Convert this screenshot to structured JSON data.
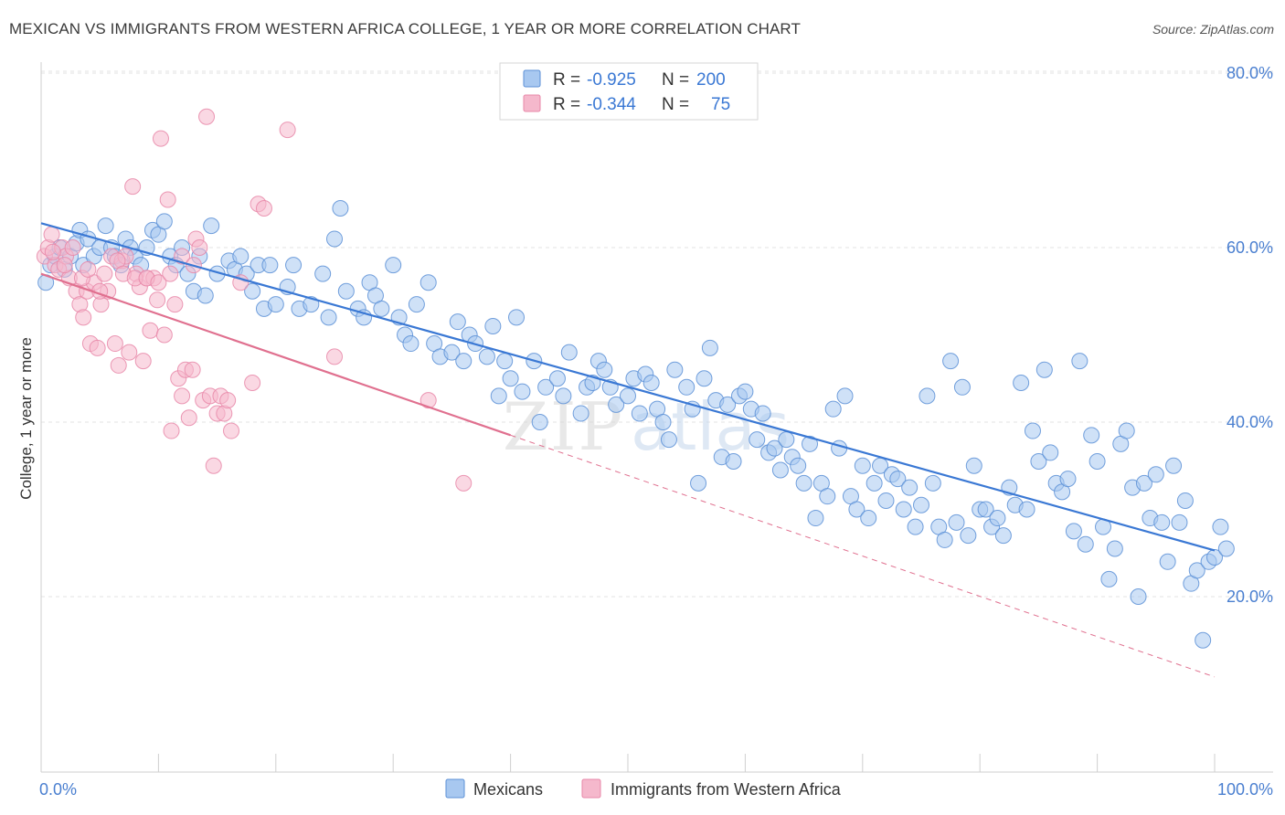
{
  "title": "MEXICAN VS IMMIGRANTS FROM WESTERN AFRICA COLLEGE, 1 YEAR OR MORE CORRELATION CHART",
  "source": "Source: ZipAtlas.com",
  "watermark": {
    "zip": "ZIP",
    "atlas": "atlas"
  },
  "colors": {
    "blue_fill": "#a8c8f0",
    "blue_stroke": "#5b8fd6",
    "blue_line": "#3a78d4",
    "pink_fill": "#f5b8cc",
    "pink_stroke": "#e887a8",
    "pink_line": "#e0708f",
    "grid": "#e3e3e3",
    "tick_text": "#4a7fd0"
  },
  "legend": {
    "rows": [
      {
        "r_label": "R =",
        "r_value": "-0.925",
        "n_label": "N =",
        "n_value": "200"
      },
      {
        "r_label": "R =",
        "r_value": "-0.344",
        "n_label": "N =",
        "n_value": "75"
      }
    ]
  },
  "chart_data": {
    "type": "scatter",
    "title": "MEXICAN VS IMMIGRANTS FROM WESTERN AFRICA COLLEGE, 1 YEAR OR MORE CORRELATION CHART",
    "xlabel": "",
    "ylabel": "College, 1 year or more",
    "xlim": [
      0,
      100
    ],
    "ylim": [
      0,
      85
    ],
    "x_tick_labels": [
      {
        "value": 0,
        "label": "0.0%"
      },
      {
        "value": 100,
        "label": "100.0%"
      }
    ],
    "y_tick_labels": [
      {
        "value": 20,
        "label": "20.0%"
      },
      {
        "value": 40,
        "label": "40.0%"
      },
      {
        "value": 60,
        "label": "60.0%"
      },
      {
        "value": 80,
        "label": "80.0%"
      }
    ],
    "grid": true,
    "legend_position": "bottom",
    "series": [
      {
        "name": "Mexicans",
        "color": "#a8c8f0",
        "trend": {
          "x0": 0,
          "y0": 62.8,
          "x1": 100,
          "y1": 25.3
        },
        "points": [
          [
            0.4,
            56
          ],
          [
            0.8,
            58
          ],
          [
            1.2,
            59
          ],
          [
            1.6,
            60
          ],
          [
            2.0,
            57.5
          ],
          [
            2.5,
            59
          ],
          [
            3,
            60.5
          ],
          [
            3.3,
            62
          ],
          [
            3.6,
            58
          ],
          [
            4,
            61
          ],
          [
            4.5,
            59
          ],
          [
            5,
            60
          ],
          [
            5.5,
            62.5
          ],
          [
            6,
            60
          ],
          [
            6.3,
            59
          ],
          [
            6.8,
            58
          ],
          [
            7.2,
            61
          ],
          [
            7.6,
            60
          ],
          [
            8,
            59
          ],
          [
            8.5,
            58
          ],
          [
            9,
            60
          ],
          [
            9.5,
            62
          ],
          [
            10,
            61.5
          ],
          [
            10.5,
            63
          ],
          [
            11,
            59
          ],
          [
            11.5,
            58
          ],
          [
            12,
            60
          ],
          [
            12.5,
            57
          ],
          [
            13,
            55
          ],
          [
            13.5,
            59
          ],
          [
            14,
            54.5
          ],
          [
            14.5,
            62.5
          ],
          [
            15,
            57
          ],
          [
            16,
            58.5
          ],
          [
            16.5,
            57.5
          ],
          [
            17,
            59
          ],
          [
            17.5,
            57
          ],
          [
            18,
            55
          ],
          [
            18.5,
            58
          ],
          [
            19,
            53
          ],
          [
            19.5,
            58
          ],
          [
            20,
            53.5
          ],
          [
            21,
            55.5
          ],
          [
            21.5,
            58
          ],
          [
            22,
            53
          ],
          [
            23,
            53.5
          ],
          [
            24,
            57
          ],
          [
            24.5,
            52
          ],
          [
            25,
            61
          ],
          [
            25.5,
            64.5
          ],
          [
            26,
            55
          ],
          [
            27,
            53
          ],
          [
            27.5,
            52
          ],
          [
            28,
            56
          ],
          [
            28.5,
            54.5
          ],
          [
            29,
            53
          ],
          [
            30,
            58
          ],
          [
            30.5,
            52
          ],
          [
            31,
            50
          ],
          [
            31.5,
            49
          ],
          [
            32,
            53.5
          ],
          [
            33,
            56
          ],
          [
            33.5,
            49
          ],
          [
            34,
            47.5
          ],
          [
            35,
            48
          ],
          [
            35.5,
            51.5
          ],
          [
            36,
            47
          ],
          [
            36.5,
            50
          ],
          [
            37,
            49
          ],
          [
            38,
            47.5
          ],
          [
            38.5,
            51
          ],
          [
            39,
            43
          ],
          [
            39.5,
            47
          ],
          [
            40,
            45
          ],
          [
            40.5,
            52
          ],
          [
            41,
            43.5
          ],
          [
            42,
            47
          ],
          [
            42.5,
            40
          ],
          [
            43,
            44
          ],
          [
            44,
            45
          ],
          [
            44.5,
            43
          ],
          [
            45,
            48
          ],
          [
            46,
            41
          ],
          [
            46.5,
            44
          ],
          [
            47,
            44.5
          ],
          [
            47.5,
            47
          ],
          [
            48,
            46
          ],
          [
            48.5,
            44
          ],
          [
            49,
            42
          ],
          [
            50,
            43
          ],
          [
            50.5,
            45
          ],
          [
            51,
            41
          ],
          [
            51.5,
            45.5
          ],
          [
            52,
            44.5
          ],
          [
            52.5,
            41.5
          ],
          [
            53,
            40
          ],
          [
            53.5,
            38
          ],
          [
            54,
            46
          ],
          [
            55,
            44
          ],
          [
            55.5,
            41.5
          ],
          [
            56,
            33
          ],
          [
            56.5,
            45
          ],
          [
            57,
            48.5
          ],
          [
            57.5,
            42.5
          ],
          [
            58,
            36
          ],
          [
            58.5,
            42
          ],
          [
            59,
            35.5
          ],
          [
            59.5,
            43
          ],
          [
            60,
            43.5
          ],
          [
            60.5,
            41.5
          ],
          [
            61,
            38
          ],
          [
            61.5,
            41
          ],
          [
            62,
            36.5
          ],
          [
            62.5,
            37
          ],
          [
            63,
            34.5
          ],
          [
            63.5,
            38
          ],
          [
            64,
            36
          ],
          [
            64.5,
            35
          ],
          [
            65,
            33
          ],
          [
            65.5,
            37.5
          ],
          [
            66,
            29
          ],
          [
            66.5,
            33
          ],
          [
            67,
            31.5
          ],
          [
            67.5,
            41.5
          ],
          [
            68,
            37
          ],
          [
            68.5,
            43
          ],
          [
            69,
            31.5
          ],
          [
            69.5,
            30
          ],
          [
            70,
            35
          ],
          [
            70.5,
            29
          ],
          [
            71,
            33
          ],
          [
            71.5,
            35
          ],
          [
            72,
            31
          ],
          [
            72.5,
            34
          ],
          [
            73,
            33.5
          ],
          [
            73.5,
            30
          ],
          [
            74,
            32.5
          ],
          [
            74.5,
            28
          ],
          [
            75,
            30.5
          ],
          [
            75.5,
            43
          ],
          [
            76,
            33
          ],
          [
            76.5,
            28
          ],
          [
            77,
            26.5
          ],
          [
            77.5,
            47
          ],
          [
            78,
            28.5
          ],
          [
            78.5,
            44
          ],
          [
            79,
            27
          ],
          [
            79.5,
            35
          ],
          [
            80,
            30
          ],
          [
            80.5,
            30
          ],
          [
            81,
            28
          ],
          [
            81.5,
            29
          ],
          [
            82,
            27
          ],
          [
            82.5,
            32.5
          ],
          [
            83,
            30.5
          ],
          [
            83.5,
            44.5
          ],
          [
            84,
            30
          ],
          [
            84.5,
            39
          ],
          [
            85,
            35.5
          ],
          [
            85.5,
            46
          ],
          [
            86,
            36.5
          ],
          [
            86.5,
            33
          ],
          [
            87,
            32
          ],
          [
            87.5,
            33.5
          ],
          [
            88,
            27.5
          ],
          [
            88.5,
            47
          ],
          [
            89,
            26
          ],
          [
            89.5,
            38.5
          ],
          [
            90,
            35.5
          ],
          [
            90.5,
            28
          ],
          [
            91,
            22
          ],
          [
            91.5,
            25.5
          ],
          [
            92,
            37.5
          ],
          [
            92.5,
            39
          ],
          [
            93,
            32.5
          ],
          [
            93.5,
            20
          ],
          [
            94,
            33
          ],
          [
            94.5,
            29
          ],
          [
            95,
            34
          ],
          [
            95.5,
            28.5
          ],
          [
            96,
            24
          ],
          [
            96.5,
            35
          ],
          [
            97,
            28.5
          ],
          [
            97.5,
            31
          ],
          [
            98,
            21.5
          ],
          [
            98.5,
            23
          ],
          [
            99,
            15
          ],
          [
            99.5,
            24
          ],
          [
            100,
            24.5
          ],
          [
            100.5,
            28
          ],
          [
            101,
            25.5
          ]
        ]
      },
      {
        "name": "Immigrants from Western Africa",
        "color": "#f5b8cc",
        "trend": {
          "x0": 0,
          "y0": 57,
          "x1": 40,
          "y1": 38.5,
          "dash_x1": 100,
          "dash_y1": 10.8
        },
        "points": [
          [
            0.3,
            59
          ],
          [
            0.6,
            60
          ],
          [
            0.9,
            61.5
          ],
          [
            1.2,
            58
          ],
          [
            1.5,
            57.5
          ],
          [
            1.8,
            60
          ],
          [
            2.1,
            59
          ],
          [
            2.4,
            56.5
          ],
          [
            2.7,
            60
          ],
          [
            3,
            55
          ],
          [
            3.3,
            53.5
          ],
          [
            3.6,
            52
          ],
          [
            3.9,
            55
          ],
          [
            4.2,
            49
          ],
          [
            4.5,
            56
          ],
          [
            4.8,
            48.5
          ],
          [
            5.1,
            53.5
          ],
          [
            5.4,
            57
          ],
          [
            5.7,
            55
          ],
          [
            6,
            59
          ],
          [
            6.3,
            49
          ],
          [
            6.6,
            46.5
          ],
          [
            6.9,
            58.5
          ],
          [
            7.2,
            59
          ],
          [
            7.5,
            48
          ],
          [
            7.8,
            67
          ],
          [
            8.1,
            57
          ],
          [
            8.4,
            55.5
          ],
          [
            8.7,
            47
          ],
          [
            9,
            56.5
          ],
          [
            9.3,
            50.5
          ],
          [
            9.6,
            56.5
          ],
          [
            9.9,
            54
          ],
          [
            10.2,
            72.5
          ],
          [
            10.5,
            50
          ],
          [
            10.8,
            65.5
          ],
          [
            11.1,
            39
          ],
          [
            11.4,
            53.5
          ],
          [
            11.7,
            45
          ],
          [
            12,
            43
          ],
          [
            12.3,
            46
          ],
          [
            12.6,
            40.5
          ],
          [
            12.9,
            46
          ],
          [
            13.2,
            61
          ],
          [
            13.5,
            60
          ],
          [
            13.8,
            42.5
          ],
          [
            14.1,
            75
          ],
          [
            14.4,
            43
          ],
          [
            14.7,
            35
          ],
          [
            15,
            41
          ],
          [
            15.3,
            43
          ],
          [
            15.6,
            41
          ],
          [
            15.9,
            42.5
          ],
          [
            16.2,
            39
          ],
          [
            17,
            56
          ],
          [
            18,
            44.5
          ],
          [
            18.5,
            65
          ],
          [
            19,
            64.5
          ],
          [
            21,
            73.5
          ],
          [
            25,
            47.5
          ],
          [
            33,
            42.5
          ],
          [
            36,
            33
          ],
          [
            1,
            59.5
          ],
          [
            2,
            58
          ],
          [
            3.5,
            56.5
          ],
          [
            4,
            57.5
          ],
          [
            5,
            55
          ],
          [
            6.5,
            58.5
          ],
          [
            7,
            57
          ],
          [
            8,
            56.5
          ],
          [
            9,
            56.5
          ],
          [
            10,
            56
          ],
          [
            11,
            57
          ],
          [
            12,
            59
          ],
          [
            13,
            58
          ]
        ]
      }
    ]
  },
  "bottom_legend": [
    {
      "label": "Mexicans"
    },
    {
      "label": "Immigrants from Western Africa"
    }
  ]
}
